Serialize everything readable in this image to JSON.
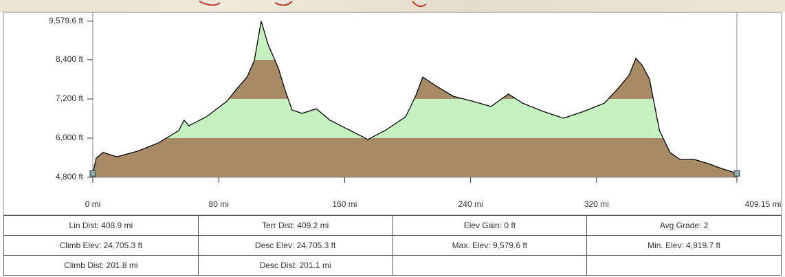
{
  "chart_data": {
    "type": "area",
    "x": [
      0,
      2.2,
      6.5,
      15.3,
      28.4,
      41.5,
      54.6,
      58,
      61,
      72,
      85,
      92,
      98,
      102.6,
      107,
      111.4,
      118,
      122,
      126.6,
      133,
      142,
      150.6,
      163.7,
      174.7,
      185.6,
      198.7,
      205,
      209.6,
      218,
      229,
      242,
      253,
      264,
      273,
      286,
      299,
      312,
      325,
      334,
      340.6,
      345,
      349,
      353.6,
      360,
      366.7,
      373,
      382,
      391,
      399.5,
      409.15
    ],
    "values": [
      4920,
      5390,
      5560,
      5430,
      5600,
      5850,
      6230,
      6550,
      6380,
      6650,
      7120,
      7540,
      7870,
      8380,
      9580,
      8860,
      8130,
      7490,
      6860,
      6760,
      6900,
      6550,
      6230,
      5960,
      6230,
      6650,
      7280,
      7870,
      7600,
      7280,
      7120,
      6970,
      7350,
      7070,
      6820,
      6610,
      6820,
      7070,
      7540,
      7920,
      8440,
      8230,
      7810,
      6230,
      5560,
      5350,
      5350,
      5220,
      5070,
      4920
    ],
    "color": "#000000",
    "band_colors": [
      "#a68b66",
      "#c6f2c2"
    ],
    "xlim": [
      0,
      409.15
    ],
    "xticks": [
      {
        "value": 0,
        "label": "0 mi"
      },
      {
        "value": 80,
        "label": "80 mi"
      },
      {
        "value": 160,
        "label": "160 mi"
      },
      {
        "value": 240,
        "label": "240 mi"
      },
      {
        "value": 320,
        "label": "320 mi"
      },
      {
        "value": 409.15,
        "label": "409.15 mi"
      }
    ],
    "ylim": [
      4800,
      9850
    ],
    "yticks": [
      {
        "value": 4800,
        "label": "4,800 ft"
      },
      {
        "value": 6000,
        "label": "6,000 ft"
      },
      {
        "value": 7200,
        "label": "7,200 ft"
      },
      {
        "value": 8400,
        "label": "8,400 ft"
      },
      {
        "value": 9579.6,
        "label": "9,579.6 ft"
      }
    ]
  },
  "table": {
    "rows": [
      [
        "Lin Dist: 408.9 mi",
        "Terr Dist: 409.2 mi",
        "Elev Gain: 0 ft",
        "Avg Grade: 2"
      ],
      [
        "Climb Elev: 24,705.3 ft",
        "Desc Elev: 24,705.3 ft",
        "Max. Elev: 9,579.6 ft",
        "Min. Elev: 4,919.7 ft"
      ],
      [
        "Climb Dist: 201.8 mi",
        "Desc Dist: 201.1 mi",
        null,
        null
      ]
    ]
  }
}
